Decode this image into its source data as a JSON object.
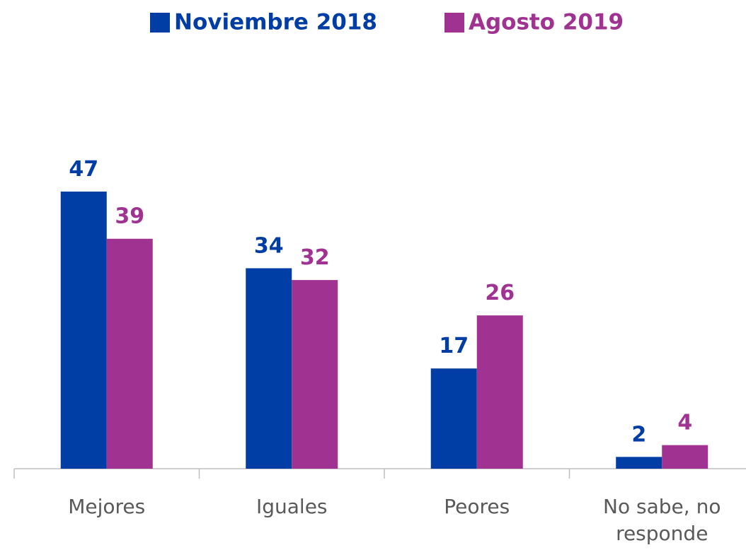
{
  "chart_data": {
    "type": "bar",
    "categories": [
      "Mejores",
      "Iguales",
      "Peores",
      "No sabe, no responde"
    ],
    "series": [
      {
        "name": "Noviembre 2018",
        "color": "#003da5",
        "values": [
          47,
          34,
          17,
          2
        ]
      },
      {
        "name": "Agosto 2019",
        "color": "#a03291",
        "values": [
          39,
          32,
          26,
          4
        ]
      }
    ],
    "ylim": [
      0,
      50
    ],
    "legend": "top"
  }
}
